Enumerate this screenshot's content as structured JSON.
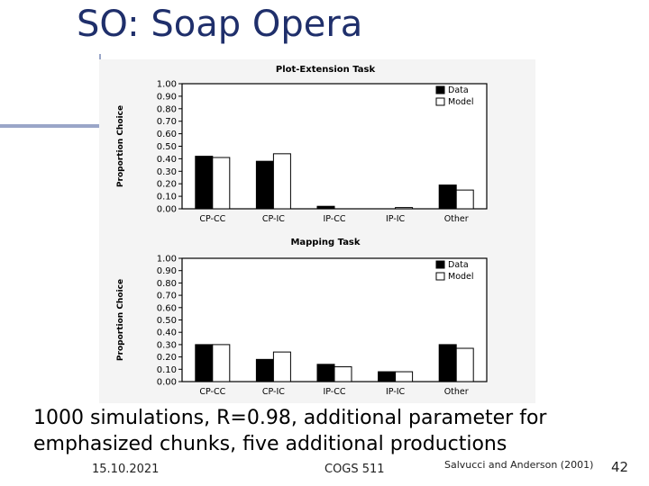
{
  "slide": {
    "title": "SO: Soap Opera",
    "caption": "1000 simulations, R=0.98, additional parameter for emphasized chunks, five additional productions",
    "footer_date": "15.10.2021",
    "footer_course": "COGS 511",
    "footer_citation": "Salvucci and Anderson (2001)",
    "page_number": "42"
  },
  "colors": {
    "title": "#1f2f6b",
    "data_fill": "#000000",
    "model_fill": "#ffffff",
    "accent": "#9aa6c8"
  },
  "chart_data": [
    {
      "type": "bar",
      "title": "Plot-Extension Task",
      "ylabel": "Proportion Choice",
      "xlabel": "",
      "ylim": [
        0,
        1.0
      ],
      "yticks": [
        "0.00",
        "0.10",
        "0.20",
        "0.30",
        "0.40",
        "0.50",
        "0.60",
        "0.70",
        "0.80",
        "0.90",
        "1.00"
      ],
      "categories": [
        "CP-CC",
        "CP-IC",
        "IP-CC",
        "IP-IC",
        "Other"
      ],
      "legend_position": "top-right",
      "series": [
        {
          "name": "Data",
          "values": [
            0.42,
            0.38,
            0.02,
            0.0,
            0.19
          ]
        },
        {
          "name": "Model",
          "values": [
            0.41,
            0.44,
            0.0,
            0.01,
            0.15
          ]
        }
      ]
    },
    {
      "type": "bar",
      "title": "Mapping Task",
      "ylabel": "Proportion Choice",
      "xlabel": "",
      "ylim": [
        0,
        1.0
      ],
      "yticks": [
        "0.00",
        "0.10",
        "0.20",
        "0.30",
        "0.40",
        "0.50",
        "0.60",
        "0.70",
        "0.80",
        "0.90",
        "1.00"
      ],
      "categories": [
        "CP-CC",
        "CP-IC",
        "IP-CC",
        "IP-IC",
        "Other"
      ],
      "legend_position": "top-right",
      "series": [
        {
          "name": "Data",
          "values": [
            0.3,
            0.18,
            0.14,
            0.08,
            0.3
          ]
        },
        {
          "name": "Model",
          "values": [
            0.3,
            0.24,
            0.12,
            0.08,
            0.27
          ]
        }
      ]
    }
  ]
}
